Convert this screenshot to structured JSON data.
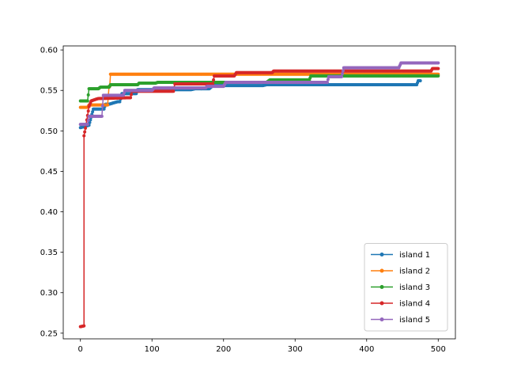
{
  "chart_data": {
    "type": "line",
    "title": "",
    "xlabel": "",
    "ylabel": "",
    "xlim": [
      -24,
      524
    ],
    "ylim": [
      0.243,
      0.605
    ],
    "xticks": [
      0,
      100,
      200,
      300,
      400,
      500
    ],
    "yticks": [
      0.25,
      0.3,
      0.35,
      0.4,
      0.45,
      0.5,
      0.55,
      0.6
    ],
    "legend_position": "lower right",
    "grid": false,
    "series": [
      {
        "name": "island 1",
        "color": "#1f77b4",
        "points": [
          [
            0,
            0.504
          ],
          [
            12,
            0.507
          ],
          [
            18,
            0.527
          ],
          [
            33,
            0.527
          ],
          [
            35,
            0.533
          ],
          [
            40,
            0.533
          ],
          [
            52,
            0.536
          ],
          [
            55,
            0.536
          ],
          [
            58,
            0.546
          ],
          [
            78,
            0.546
          ],
          [
            80,
            0.551
          ],
          [
            155,
            0.551
          ],
          [
            160,
            0.552
          ],
          [
            180,
            0.552
          ],
          [
            185,
            0.556
          ],
          [
            255,
            0.556
          ],
          [
            260,
            0.557
          ],
          [
            470,
            0.557
          ],
          [
            472,
            0.562
          ],
          [
            475,
            0.562
          ]
        ]
      },
      {
        "name": "island 2",
        "color": "#ff7f0e",
        "points": [
          [
            0,
            0.529
          ],
          [
            10,
            0.529
          ],
          [
            12,
            0.532
          ],
          [
            38,
            0.532
          ],
          [
            40,
            0.555
          ],
          [
            41,
            0.555
          ],
          [
            42,
            0.57
          ],
          [
            500,
            0.57
          ]
        ]
      },
      {
        "name": "island 3",
        "color": "#2ca02c",
        "points": [
          [
            0,
            0.537
          ],
          [
            10,
            0.537
          ],
          [
            12,
            0.552
          ],
          [
            25,
            0.552
          ],
          [
            28,
            0.554
          ],
          [
            40,
            0.554
          ],
          [
            42,
            0.557
          ],
          [
            80,
            0.557
          ],
          [
            82,
            0.559
          ],
          [
            105,
            0.559
          ],
          [
            108,
            0.56
          ],
          [
            260,
            0.56
          ],
          [
            265,
            0.563
          ],
          [
            320,
            0.563
          ],
          [
            322,
            0.568
          ],
          [
            500,
            0.568
          ]
        ]
      },
      {
        "name": "island 4",
        "color": "#d62728",
        "points": [
          [
            0,
            0.258
          ],
          [
            5,
            0.259
          ],
          [
            5,
            0.494
          ],
          [
            8,
            0.508
          ],
          [
            12,
            0.53
          ],
          [
            15,
            0.537
          ],
          [
            18,
            0.538
          ],
          [
            25,
            0.54
          ],
          [
            70,
            0.541
          ],
          [
            72,
            0.549
          ],
          [
            130,
            0.549
          ],
          [
            132,
            0.558
          ],
          [
            185,
            0.558
          ],
          [
            187,
            0.568
          ],
          [
            215,
            0.568
          ],
          [
            218,
            0.572
          ],
          [
            268,
            0.572
          ],
          [
            270,
            0.574
          ],
          [
            490,
            0.574
          ],
          [
            492,
            0.577
          ],
          [
            500,
            0.577
          ]
        ]
      },
      {
        "name": "island 5",
        "color": "#9467bd",
        "points": [
          [
            0,
            0.508
          ],
          [
            10,
            0.508
          ],
          [
            12,
            0.518
          ],
          [
            30,
            0.518
          ],
          [
            32,
            0.544
          ],
          [
            60,
            0.544
          ],
          [
            62,
            0.55
          ],
          [
            100,
            0.55
          ],
          [
            103,
            0.553
          ],
          [
            175,
            0.553
          ],
          [
            177,
            0.555
          ],
          [
            200,
            0.555
          ],
          [
            203,
            0.56
          ],
          [
            345,
            0.56
          ],
          [
            347,
            0.567
          ],
          [
            365,
            0.567
          ],
          [
            368,
            0.578
          ],
          [
            445,
            0.578
          ],
          [
            448,
            0.584
          ],
          [
            500,
            0.584
          ]
        ]
      }
    ]
  }
}
